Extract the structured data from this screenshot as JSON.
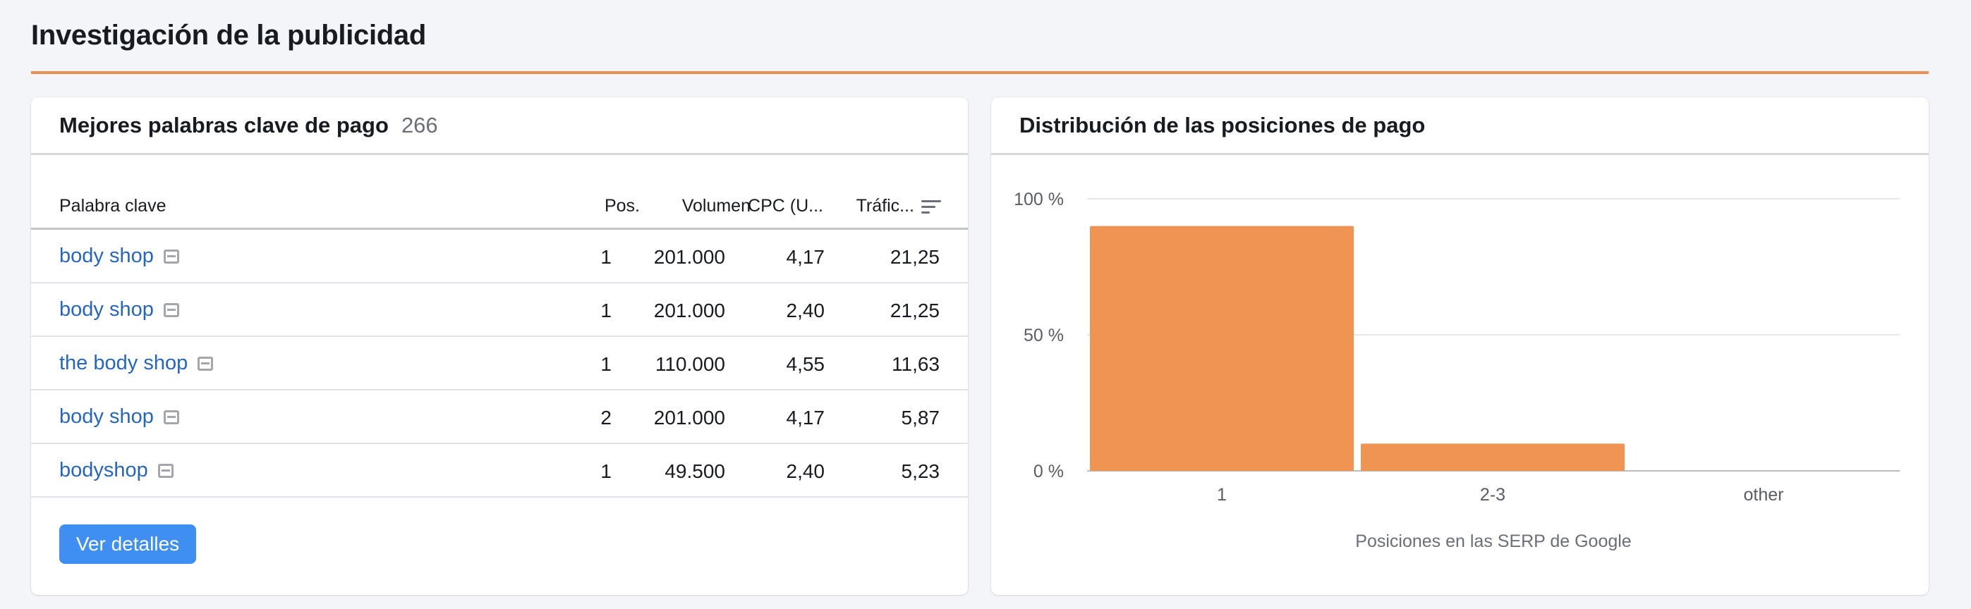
{
  "section": {
    "title": "Investigación de la publicidad"
  },
  "keywords_card": {
    "title": "Mejores palabras clave de pago",
    "count": "266",
    "columns": {
      "keyword": "Palabra clave",
      "pos": "Pos.",
      "volume": "Volumen",
      "cpc": "CPC (U...",
      "traffic": "Tráfic..."
    },
    "rows": [
      {
        "keyword": "body shop",
        "pos": "1",
        "volume": "201.000",
        "cpc": "4,17",
        "traffic": "21,25"
      },
      {
        "keyword": "body shop",
        "pos": "1",
        "volume": "201.000",
        "cpc": "2,40",
        "traffic": "21,25"
      },
      {
        "keyword": "the body shop",
        "pos": "1",
        "volume": "110.000",
        "cpc": "4,55",
        "traffic": "11,63"
      },
      {
        "keyword": "body shop",
        "pos": "2",
        "volume": "201.000",
        "cpc": "4,17",
        "traffic": "5,87"
      },
      {
        "keyword": "bodyshop",
        "pos": "1",
        "volume": "49.500",
        "cpc": "2,40",
        "traffic": "5,23"
      }
    ],
    "details_button": "Ver detalles"
  },
  "distribution_card": {
    "title": "Distribución de las posiciones de pago"
  },
  "chart_data": {
    "type": "bar",
    "categories": [
      "1",
      "2-3",
      "other"
    ],
    "values": [
      90,
      10,
      0
    ],
    "ylim": [
      0,
      100
    ],
    "yticks": [
      "0 %",
      "50 %",
      "100 %"
    ],
    "ytick_values": [
      0,
      50,
      100
    ],
    "xlabel": "Posiciones en las SERP de Google",
    "bar_color": "#ef9453",
    "grid": true
  },
  "colors": {
    "accent": "#ef8f4f",
    "link": "#2566c3",
    "button": "#3f8ef2"
  }
}
